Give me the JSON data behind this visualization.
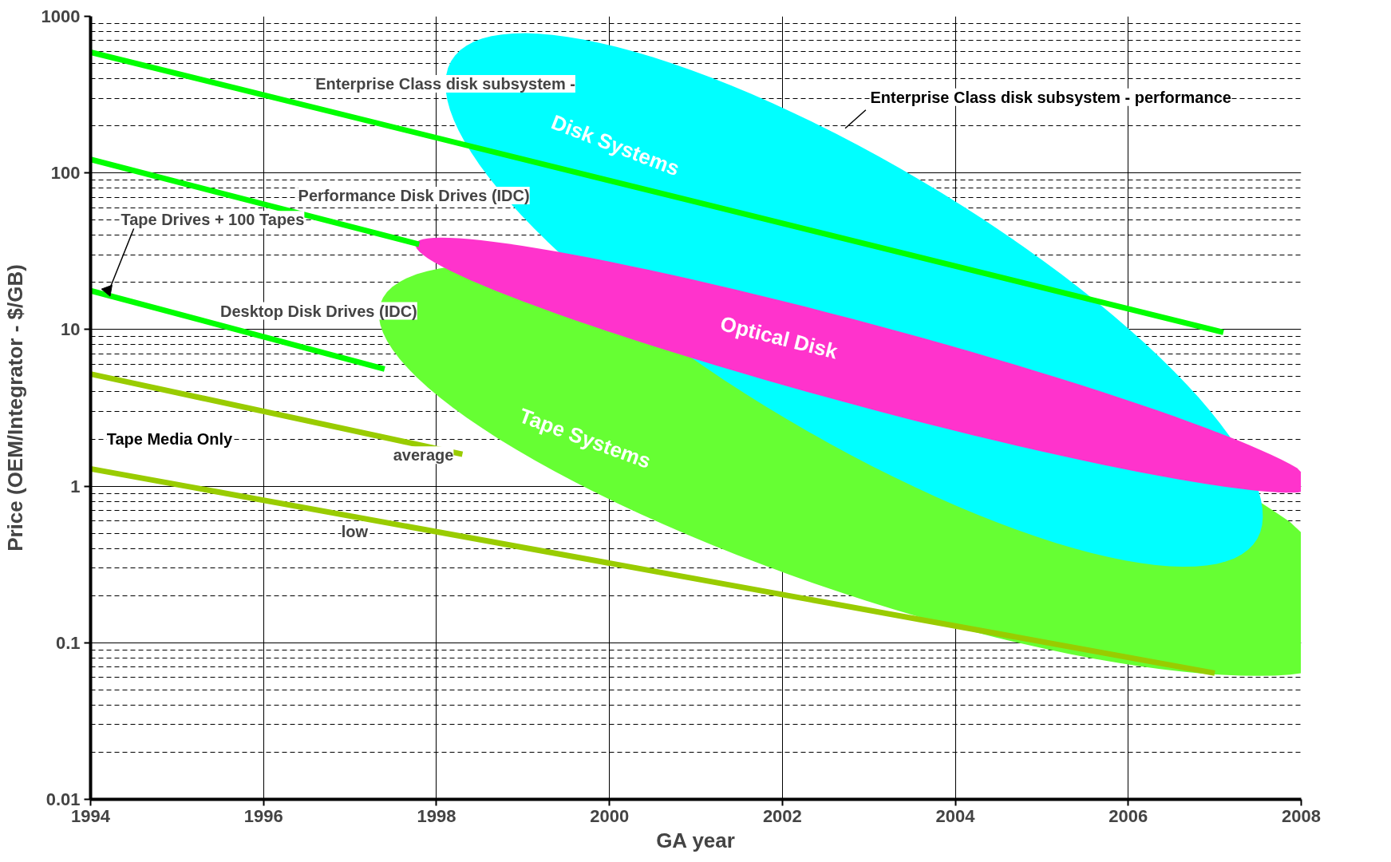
{
  "chart_data": {
    "type": "line",
    "xlabel": "GA year",
    "ylabel": "Price (OEM/Integrator - $/GB)",
    "log": "y",
    "xlim": [
      1994,
      2008
    ],
    "xticks": [
      1994,
      1996,
      1998,
      2000,
      2002,
      2004,
      2006,
      2008
    ],
    "ylim": [
      0.01,
      1000
    ],
    "yticks": [
      0.01,
      0.1,
      1,
      10,
      100,
      1000
    ],
    "grid": true,
    "marker": "none",
    "line_style": "solid",
    "series": [
      {
        "name": "Enterprise Class disk subsystem -",
        "color": "#00ff00",
        "x": [
          1994,
          2007.1
        ],
        "values": [
          590,
          9.6
        ]
      },
      {
        "name": "Performance Disk Drives (IDC)",
        "color": "#00ff00",
        "x": [
          1994,
          1997.8
        ],
        "values": [
          122,
          35
        ]
      },
      {
        "name": "Desktop Disk Drives (IDC)",
        "color": "#00ff00",
        "x": [
          1994,
          1997.4
        ],
        "values": [
          17.7,
          5.6
        ]
      },
      {
        "name": "average",
        "color": "#99cc00",
        "x": [
          1994,
          1998.3
        ],
        "values": [
          5.2,
          1.6
        ]
      },
      {
        "name": "low",
        "color": "#99cc00",
        "x": [
          1994,
          2007
        ],
        "values": [
          1.29,
          0.064
        ]
      }
    ],
    "annotations": [
      {
        "text": "Tape Drives + 100 Tapes",
        "x": 1994.2,
        "y": 17
      },
      "Tape Media Only",
      "Enterprise Class disk subsystem - performance",
      "Tape Systems",
      "Disk Systems",
      "Optical Disk"
    ]
  }
}
